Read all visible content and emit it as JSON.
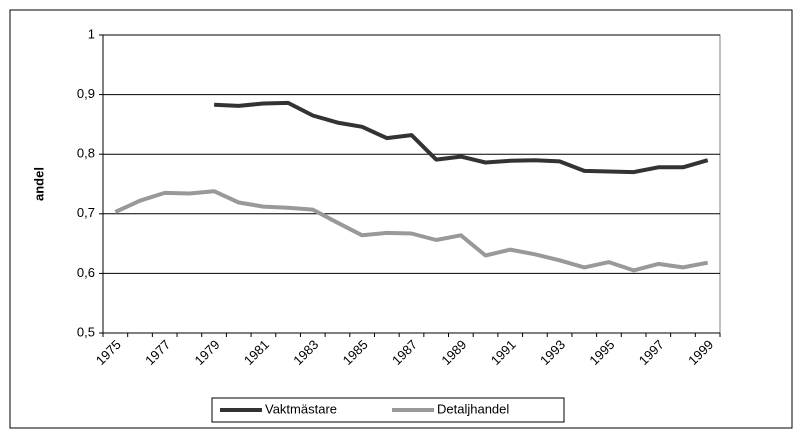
{
  "chart_data": {
    "type": "line",
    "y_label": "andel",
    "categories": [
      "1975",
      null,
      "1977",
      null,
      "1979",
      null,
      "1981",
      null,
      "1983",
      null,
      "1985",
      null,
      "1987",
      null,
      "1989",
      null,
      "1991",
      null,
      "1993",
      null,
      "1995",
      null,
      "1997",
      null,
      "1999"
    ],
    "series": [
      {
        "name": "Vaktmästare",
        "color": "#333333",
        "values": [
          null,
          null,
          null,
          null,
          0.883,
          0.881,
          0.885,
          0.886,
          0.865,
          0.853,
          0.846,
          0.827,
          0.832,
          0.791,
          0.796,
          0.786,
          0.789,
          0.79,
          0.788,
          0.772,
          0.771,
          0.77,
          0.778,
          0.778,
          0.79
        ]
      },
      {
        "name": "Detaljhandel",
        "color": "#999999",
        "values": [
          0.703,
          0.722,
          0.735,
          0.734,
          0.738,
          0.719,
          0.712,
          0.71,
          0.707,
          0.685,
          0.664,
          0.668,
          0.667,
          0.656,
          0.664,
          0.63,
          0.64,
          0.632,
          0.622,
          0.61,
          0.619,
          0.605,
          0.616,
          0.61,
          0.618
        ]
      }
    ],
    "ylim": [
      0.5,
      1
    ],
    "yticks": [
      {
        "value": 0.5,
        "label": "0,5"
      },
      {
        "value": 0.6,
        "label": "0,6"
      },
      {
        "value": 0.7,
        "label": "0,7"
      },
      {
        "value": 0.8,
        "label": "0,8"
      },
      {
        "value": 0.9,
        "label": "0,9"
      },
      1
    ],
    "grid": true,
    "legend": "bottom"
  }
}
